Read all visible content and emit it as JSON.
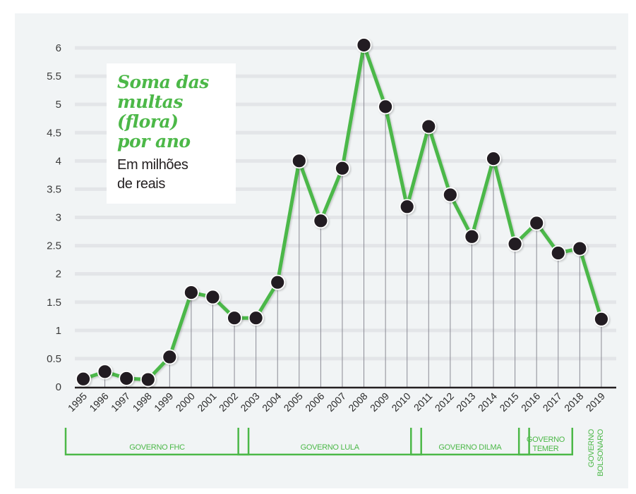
{
  "colors": {
    "background": "#f1f4f5",
    "gridline": "#e3e5e8",
    "line": "#4cb848",
    "marker": "#231f20",
    "stem": "#8a8a94",
    "axis": "#231f20",
    "title": "#4cb848"
  },
  "chart_data": {
    "type": "line",
    "title": "Soma das\nmultas\n(flora)\npor ano",
    "subtitle": "Em milhões\nde reais",
    "xlabel": "",
    "ylabel": "",
    "ylim": [
      0,
      6
    ],
    "grid": true,
    "yticks": [
      "0",
      "0.5",
      "1",
      "1.5",
      "2",
      "2.5",
      "3",
      "3.5",
      "4",
      "4.5",
      "5",
      "5.5",
      "6"
    ],
    "ytick_values": [
      0,
      0.5,
      1,
      1.5,
      2,
      2.5,
      3,
      3.5,
      4,
      4.5,
      5,
      5.5,
      6
    ],
    "categories": [
      "1995",
      "1996",
      "1997",
      "1998",
      "1999",
      "2000",
      "2001",
      "2002",
      "2003",
      "2004",
      "2005",
      "2006",
      "2007",
      "2008",
      "2009",
      "2010",
      "2011",
      "2012",
      "2013",
      "2014",
      "2015",
      "2016",
      "2017",
      "2018",
      "2019"
    ],
    "series": [
      {
        "name": "Soma das multas (flora) por ano",
        "values": [
          0.14,
          0.27,
          0.15,
          0.13,
          0.53,
          1.67,
          1.59,
          1.22,
          1.22,
          1.85,
          4.0,
          2.94,
          3.87,
          6.05,
          4.96,
          3.19,
          4.61,
          3.4,
          2.66,
          4.04,
          2.53,
          2.9,
          2.37,
          2.45,
          1.2
        ]
      }
    ],
    "annotations": [
      {
        "label": "GOVERNO FHC",
        "from": "1995",
        "to": "2002",
        "style": "bracket"
      },
      {
        "label": "GOVERNO LULA",
        "from": "2003",
        "to": "2010",
        "style": "bracket"
      },
      {
        "label": "GOVERNO DILMA",
        "from": "2011",
        "to": "2015",
        "style": "bracket"
      },
      {
        "label": "GOVERNO\nTEMER",
        "from": "2016",
        "to": "2017",
        "style": "bracket"
      },
      {
        "label": "GOVERNO\nBOLSONARO",
        "from": "2019",
        "to": "2019",
        "style": "vertical-text"
      }
    ]
  }
}
